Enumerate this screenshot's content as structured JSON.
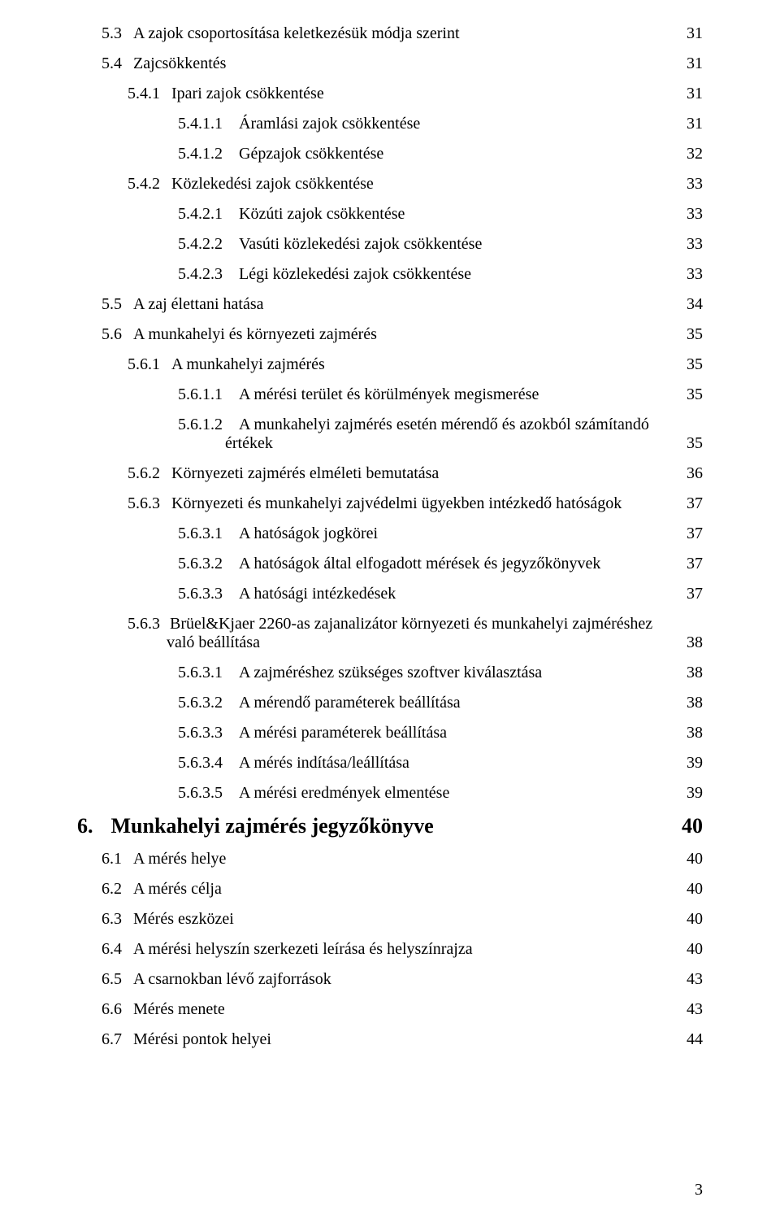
{
  "page_number": "3",
  "toc": [
    {
      "level": 2,
      "num": "5.3",
      "title": "A zajok csoportosítása keletkezésük módja szerint",
      "page": "31"
    },
    {
      "level": 2,
      "num": "5.4",
      "title": "Zajcsökkentés",
      "page": "31"
    },
    {
      "level": 3,
      "num": "5.4.1",
      "title": "Ipari zajok csökkentése",
      "page": "31"
    },
    {
      "level": 4,
      "num": "5.4.1.1",
      "title": "Áramlási zajok csökkentése",
      "page": "31"
    },
    {
      "level": 4,
      "num": "5.4.1.2",
      "title": "Gépzajok csökkentése",
      "page": "32"
    },
    {
      "level": 3,
      "num": "5.4.2",
      "title": "Közlekedési zajok csökkentése",
      "page": "33"
    },
    {
      "level": 4,
      "num": "5.4.2.1",
      "title": "Közúti zajok csökkentése",
      "page": "33"
    },
    {
      "level": 4,
      "num": "5.4.2.2",
      "title": "Vasúti közlekedési zajok csökkentése",
      "page": "33"
    },
    {
      "level": 4,
      "num": "5.4.2.3",
      "title": "Légi közlekedési zajok csökkentése",
      "page": "33"
    },
    {
      "level": 2,
      "num": "5.5",
      "title": "A zaj élettani hatása",
      "page": "34"
    },
    {
      "level": 2,
      "num": "5.6",
      "title": "A munkahelyi és környezeti zajmérés",
      "page": "35"
    },
    {
      "level": 3,
      "num": "5.6.1",
      "title": "A munkahelyi zajmérés",
      "page": "35"
    },
    {
      "level": 4,
      "num": "5.6.1.1",
      "title": "A mérési terület és körülmények megismerése",
      "page": "35"
    },
    {
      "level": 4,
      "num": "5.6.1.2",
      "title": "A munkahelyi zajmérés esetén mérendő és azokból számítandó értékek",
      "page": "35",
      "wrap": "hang4"
    },
    {
      "level": 3,
      "num": "5.6.2",
      "title": "Környezeti zajmérés elméleti bemutatása",
      "page": "36"
    },
    {
      "level": 3,
      "num": "5.6.3",
      "title": "Környezeti és munkahelyi zajvédelmi ügyekben intézkedő hatóságok",
      "page": "37"
    },
    {
      "level": 4,
      "num": "5.6.3.1",
      "title": "A hatóságok jogkörei",
      "page": "37"
    },
    {
      "level": 4,
      "num": "5.6.3.2",
      "title": "A hatóságok által elfogadott mérések és jegyzőkönyvek",
      "page": "37"
    },
    {
      "level": 4,
      "num": "5.6.3.3",
      "title": " A hatósági intézkedések",
      "page": "37"
    },
    {
      "level": 3,
      "num": "5.6.3",
      "title": "Brüel&Kjaer 2260-as zajanalizátor környezeti és munkahelyi zajméréshez való beállítása",
      "page": "38",
      "wrap": "hang3"
    },
    {
      "level": 4,
      "num": "5.6.3.1",
      "title": "A zajméréshez szükséges szoftver kiválasztása",
      "page": "38"
    },
    {
      "level": 4,
      "num": "5.6.3.2",
      "title": "A mérendő paraméterek beállítása",
      "page": "38"
    },
    {
      "level": 4,
      "num": "5.6.3.3",
      "title": "A mérési paraméterek beállítása",
      "page": "38"
    },
    {
      "level": 4,
      "num": "5.6.3.4",
      "title": "A mérés indítása/leállítása",
      "page": "39"
    },
    {
      "level": 4,
      "num": "5.6.3.5",
      "title": "A mérési eredmények elmentése",
      "page": "39"
    },
    {
      "level": 1,
      "num": "6.",
      "title": "Munkahelyi zajmérés jegyzőkönyve",
      "page": "40"
    },
    {
      "level": 2,
      "num": "6.1",
      "title": "A mérés helye",
      "page": "40"
    },
    {
      "level": 2,
      "num": "6.2",
      "title": "A mérés célja",
      "page": "40"
    },
    {
      "level": 2,
      "num": "6.3",
      "title": "Mérés eszközei",
      "page": "40"
    },
    {
      "level": 2,
      "num": "6.4",
      "title": "A mérési helyszín szerkezeti leírása és helyszínrajza",
      "page": "40"
    },
    {
      "level": 2,
      "num": "6.5",
      "title": "A csarnokban lévő zajforrások",
      "page": "43"
    },
    {
      "level": 2,
      "num": "6.6",
      "title": "Mérés menete",
      "page": "43"
    },
    {
      "level": 2,
      "num": "6.7",
      "title": " Mérési pontok helyei",
      "page": "44"
    }
  ]
}
